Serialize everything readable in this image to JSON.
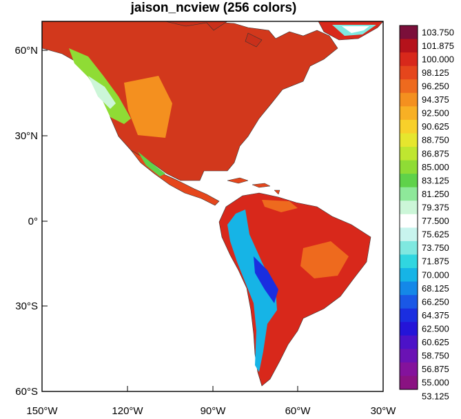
{
  "title": "jaison_ncview (256 colors)",
  "map": {
    "lon_range": [
      -150,
      -30
    ],
    "lat_range": [
      -60,
      70
    ],
    "x_ticks": [
      "150°W",
      "120°W",
      "90°W",
      "60°W",
      "30°W"
    ],
    "y_ticks": [
      "60°N",
      "30°N",
      "0°",
      "30°S",
      "60°S"
    ]
  },
  "colorbar": {
    "labels": [
      "103.750",
      "101.875",
      "100.000",
      "98.125",
      "96.250",
      "94.375",
      "92.500",
      "90.625",
      "88.750",
      "86.875",
      "85.000",
      "83.125",
      "81.250",
      "79.375",
      "77.500",
      "75.625",
      "73.750",
      "71.875",
      "70.000",
      "68.125",
      "66.250",
      "64.375",
      "62.500",
      "60.625",
      "58.750",
      "56.875",
      "55.000",
      "53.125"
    ],
    "colors": [
      "#7b0f3a",
      "#b5121b",
      "#d8281b",
      "#e5461c",
      "#ee6a1e",
      "#f4901f",
      "#f8b024",
      "#f8d02a",
      "#e6e62e",
      "#bfe630",
      "#8fdc35",
      "#5fd24a",
      "#8ee89a",
      "#ccf6d8",
      "#ffffff",
      "#c8f4ee",
      "#7fe8e0",
      "#30d6e0",
      "#16b4e6",
      "#1488e8",
      "#1a58e6",
      "#1a2ee0",
      "#2414d8",
      "#4c12c8",
      "#6a12b4",
      "#84129c",
      "#8a1282"
    ]
  }
}
